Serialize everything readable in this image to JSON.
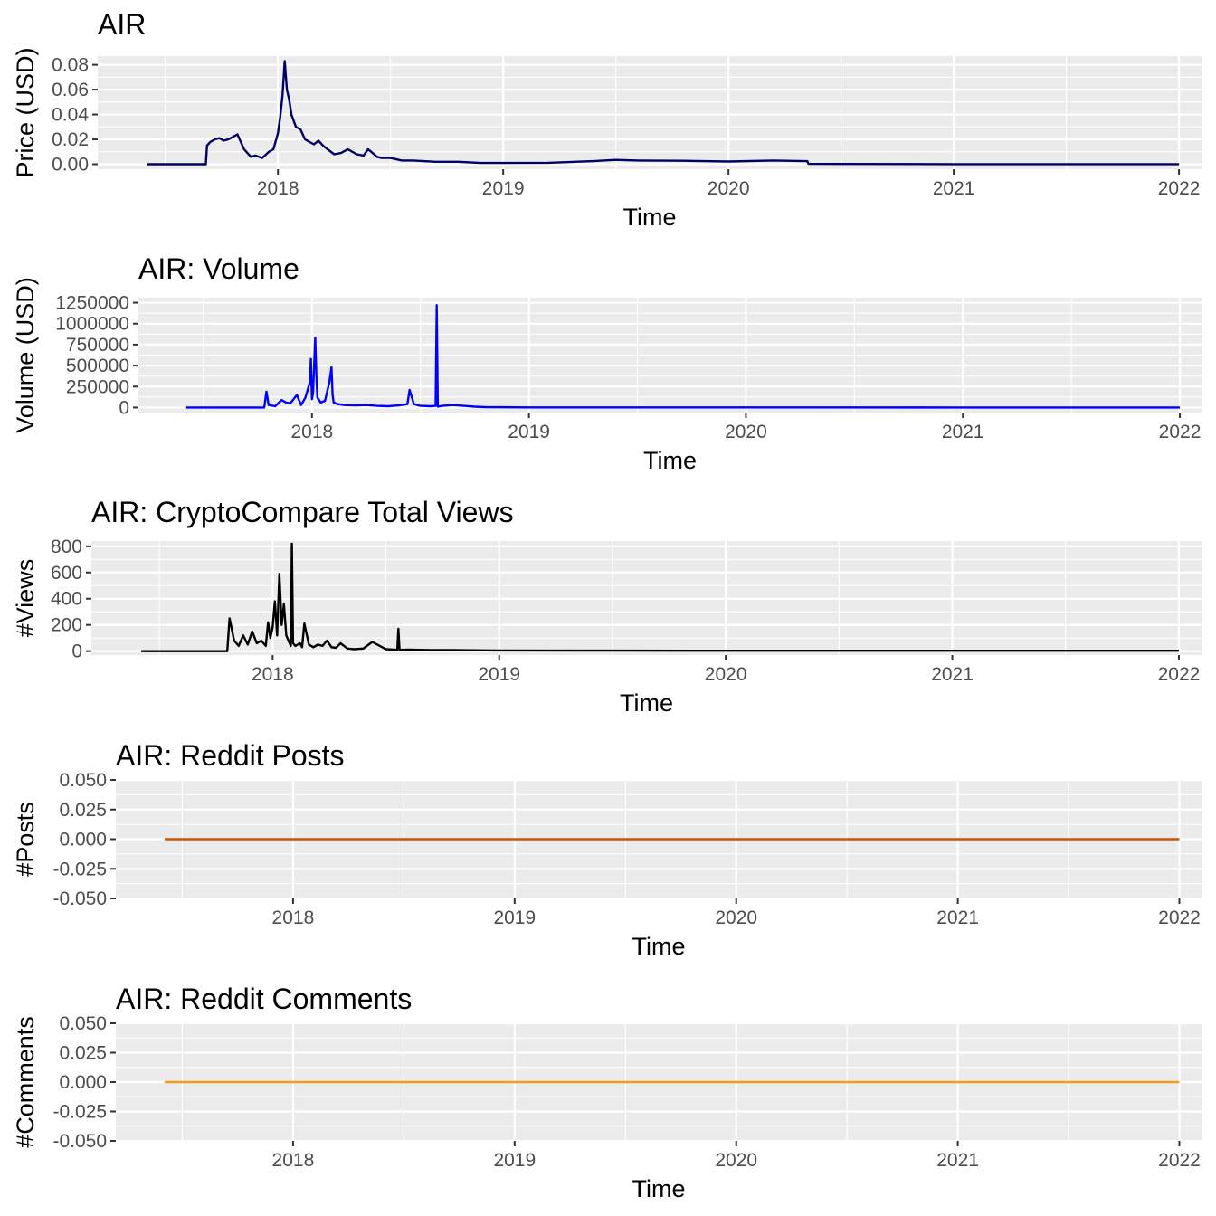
{
  "chart_data": [
    {
      "type": "line",
      "title": "AIR",
      "xlabel": "Time",
      "ylabel": "Price (USD)",
      "color": "#000066",
      "xlim": [
        2017.2,
        2022.1
      ],
      "ylim": [
        -0.004,
        0.087
      ],
      "x_ticks": [
        2018,
        2019,
        2020,
        2021,
        2022
      ],
      "y_ticks": [
        0,
        0.02,
        0.04,
        0.06,
        0.08
      ],
      "y_tick_labels": [
        "0.00",
        "0.02",
        "0.04",
        "0.06",
        "0.08"
      ],
      "series": [
        {
          "x": [
            2017.42,
            2017.68,
            2017.685,
            2017.7,
            2017.72,
            2017.74,
            2017.76,
            2017.78,
            2017.8,
            2017.82,
            2017.85,
            2017.88,
            2017.9,
            2017.93,
            2017.96,
            2017.98,
            2018.0,
            2018.01,
            2018.02,
            2018.03,
            2018.04,
            2018.05,
            2018.06,
            2018.08,
            2018.1,
            2018.12,
            2018.14,
            2018.16,
            2018.18,
            2018.2,
            2018.22,
            2018.25,
            2018.28,
            2018.31,
            2018.35,
            2018.38,
            2018.4,
            2018.42,
            2018.44,
            2018.46,
            2018.5,
            2018.55,
            2018.6,
            2018.7,
            2018.8,
            2018.9,
            2019.0,
            2019.2,
            2019.4,
            2019.5,
            2019.6,
            2019.8,
            2020.0,
            2020.2,
            2020.35,
            2020.355,
            2020.5,
            2021.0,
            2021.5,
            2022.0
          ],
          "y": [
            0,
            0,
            0.015,
            0.018,
            0.02,
            0.021,
            0.019,
            0.02,
            0.022,
            0.024,
            0.012,
            0.006,
            0.007,
            0.005,
            0.01,
            0.012,
            0.025,
            0.038,
            0.055,
            0.083,
            0.06,
            0.052,
            0.04,
            0.03,
            0.028,
            0.02,
            0.018,
            0.016,
            0.019,
            0.015,
            0.012,
            0.008,
            0.009,
            0.012,
            0.008,
            0.007,
            0.012,
            0.009,
            0.006,
            0.005,
            0.005,
            0.003,
            0.003,
            0.002,
            0.002,
            0.001,
            0.001,
            0.0012,
            0.0025,
            0.0035,
            0.003,
            0.0028,
            0.0022,
            0.003,
            0.0025,
            0.0003,
            0.0002,
            0.0001,
            0.0001,
            0.0001
          ]
        }
      ]
    },
    {
      "type": "line",
      "title": "AIR: Volume",
      "xlabel": "Time",
      "ylabel": "Volume (USD)",
      "color": "#0000ff",
      "xlim": [
        2017.2,
        2022.1
      ],
      "ylim": [
        -60000,
        1310000
      ],
      "x_ticks": [
        2018,
        2019,
        2020,
        2021,
        2022
      ],
      "y_ticks": [
        0,
        250000,
        500000,
        750000,
        1000000,
        1250000
      ],
      "y_tick_labels": [
        "0",
        "250000",
        "500000",
        "750000",
        "1000000",
        "1250000"
      ],
      "series": [
        {
          "x": [
            2017.42,
            2017.78,
            2017.79,
            2017.8,
            2017.83,
            2017.86,
            2017.88,
            2017.9,
            2017.93,
            2017.95,
            2017.97,
            2017.99,
            2017.995,
            2018.0,
            2018.005,
            2018.015,
            2018.02,
            2018.025,
            2018.04,
            2018.06,
            2018.08,
            2018.09,
            2018.095,
            2018.1,
            2018.12,
            2018.15,
            2018.2,
            2018.25,
            2018.3,
            2018.35,
            2018.4,
            2018.44,
            2018.45,
            2018.47,
            2018.5,
            2018.55,
            2018.57,
            2018.575,
            2018.58,
            2018.6,
            2018.65,
            2018.7,
            2018.75,
            2018.8,
            2019.0,
            2020.0,
            2021.0,
            2022.0
          ],
          "y": [
            0,
            0,
            190000,
            30000,
            15000,
            90000,
            60000,
            50000,
            150000,
            30000,
            120000,
            300000,
            580000,
            100000,
            180000,
            830000,
            400000,
            120000,
            60000,
            80000,
            300000,
            480000,
            150000,
            60000,
            40000,
            30000,
            25000,
            30000,
            20000,
            15000,
            25000,
            40000,
            210000,
            40000,
            20000,
            15000,
            20000,
            1220000,
            10000,
            20000,
            30000,
            20000,
            10000,
            5000,
            2000,
            1000,
            500,
            500
          ]
        }
      ]
    },
    {
      "type": "line",
      "title": "AIR: CryptoCompare Total Views",
      "xlabel": "Time",
      "ylabel": "#Views",
      "color": "#000000",
      "xlim": [
        2017.2,
        2022.1
      ],
      "ylim": [
        -30,
        840
      ],
      "x_ticks": [
        2018,
        2019,
        2020,
        2021,
        2022
      ],
      "y_ticks": [
        0,
        200,
        400,
        600,
        800
      ],
      "y_tick_labels": [
        "0",
        "200",
        "400",
        "600",
        "800"
      ],
      "series": [
        {
          "x": [
            2017.42,
            2017.8,
            2017.81,
            2017.83,
            2017.85,
            2017.87,
            2017.89,
            2017.91,
            2017.93,
            2017.95,
            2017.97,
            2017.98,
            2017.99,
            2018.0,
            2018.01,
            2018.02,
            2018.03,
            2018.04,
            2018.05,
            2018.06,
            2018.07,
            2018.08,
            2018.085,
            2018.09,
            2018.1,
            2018.12,
            2018.13,
            2018.14,
            2018.16,
            2018.18,
            2018.2,
            2018.22,
            2018.24,
            2018.26,
            2018.28,
            2018.3,
            2018.33,
            2018.36,
            2018.4,
            2018.44,
            2018.5,
            2018.55,
            2018.555,
            2018.56,
            2018.6,
            2018.7,
            2018.8,
            2019.0,
            2019.5,
            2020.0,
            2020.5,
            2021.0,
            2021.5,
            2022.0
          ],
          "y": [
            0,
            0,
            250,
            80,
            40,
            120,
            50,
            150,
            60,
            80,
            40,
            220,
            100,
            180,
            380,
            120,
            590,
            200,
            360,
            120,
            80,
            40,
            820,
            60,
            40,
            60,
            30,
            210,
            50,
            30,
            50,
            40,
            80,
            30,
            25,
            60,
            20,
            15,
            20,
            70,
            15,
            10,
            170,
            10,
            12,
            8,
            8,
            5,
            4,
            3,
            3,
            3,
            3,
            3
          ]
        }
      ]
    },
    {
      "type": "line",
      "title": "AIR: Reddit Posts",
      "xlabel": "Time",
      "ylabel": "#Posts",
      "color": "#cc5500",
      "xlim": [
        2017.2,
        2022.1
      ],
      "ylim": [
        -0.05,
        0.05
      ],
      "x_ticks": [
        2018,
        2019,
        2020,
        2021,
        2022
      ],
      "y_ticks": [
        -0.05,
        -0.025,
        0,
        0.025,
        0.05
      ],
      "y_tick_labels": [
        "-0.050",
        "-0.025",
        "0.000",
        "0.025",
        "0.050"
      ],
      "series": [
        {
          "x": [
            2017.42,
            2022.0
          ],
          "y": [
            0,
            0
          ]
        }
      ]
    },
    {
      "type": "line",
      "title": "AIR: Reddit Comments",
      "xlabel": "Time",
      "ylabel": "#Comments",
      "color": "#f29b21",
      "xlim": [
        2017.2,
        2022.1
      ],
      "ylim": [
        -0.05,
        0.05
      ],
      "x_ticks": [
        2018,
        2019,
        2020,
        2021,
        2022
      ],
      "y_ticks": [
        -0.05,
        -0.025,
        0,
        0.025,
        0.05
      ],
      "y_tick_labels": [
        "-0.050",
        "-0.025",
        "0.000",
        "0.025",
        "0.050"
      ],
      "series": [
        {
          "x": [
            2017.42,
            2022.0
          ],
          "y": [
            0,
            0
          ]
        }
      ]
    }
  ]
}
